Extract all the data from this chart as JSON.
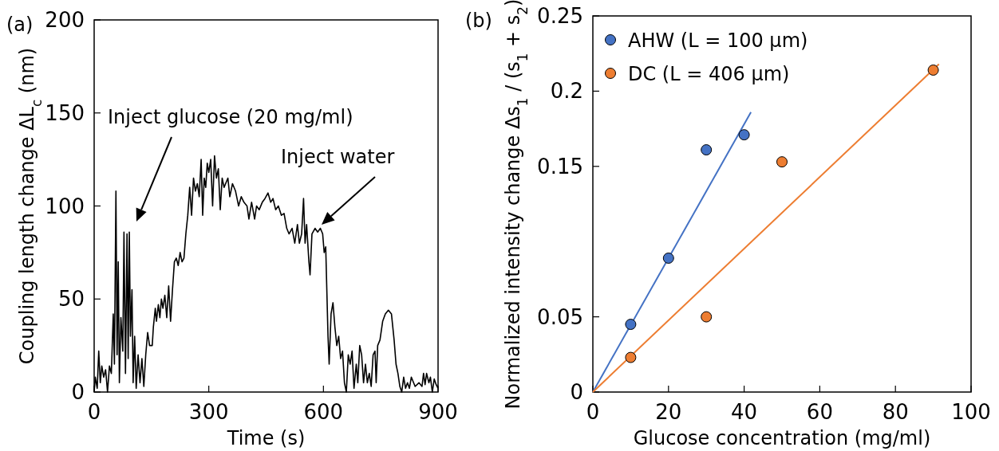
{
  "chart_data": [
    {
      "type": "line",
      "title": "(a)",
      "xlabel": "Time (s)",
      "ylabel": "Coupling length change  ΔL$_{c}$ (nm)",
      "xlim": [
        0,
        900
      ],
      "ylim": [
        0,
        200
      ],
      "xticks": [
        0,
        300,
        600,
        900
      ],
      "yticks": [
        0,
        50,
        100,
        150,
        200
      ],
      "line_style": "solid",
      "annotations": [
        "Inject glucose (20 mg/ml)",
        "Inject water"
      ],
      "series": [
        {
          "color": "#000000",
          "x": [
            0,
            3,
            8,
            12,
            16,
            20,
            25,
            30,
            35,
            40,
            45,
            50,
            53,
            57,
            60,
            63,
            66,
            70,
            75,
            78,
            82,
            86,
            89,
            92,
            95,
            99,
            102,
            106,
            110,
            115,
            120,
            125,
            130,
            135,
            140,
            145,
            152,
            155,
            160,
            163,
            168,
            172,
            176,
            180,
            185,
            190,
            195,
            200,
            205,
            210,
            215,
            220,
            225,
            230,
            235,
            240,
            245,
            250,
            255,
            260,
            265,
            270,
            275,
            280,
            284,
            288,
            292,
            296,
            300,
            305,
            310,
            315,
            320,
            325,
            330,
            335,
            340,
            350,
            355,
            362,
            370,
            378,
            385,
            392,
            400,
            405,
            412,
            420,
            425,
            432,
            440,
            447,
            455,
            462,
            468,
            475,
            482,
            490,
            497,
            504,
            510,
            518,
            525,
            532,
            537,
            543,
            548,
            552,
            556,
            562,
            565,
            570,
            578,
            585,
            592,
            598,
            602,
            606,
            612,
            615,
            620,
            625,
            630,
            635,
            640,
            645,
            650,
            655,
            660,
            665,
            670,
            675,
            680,
            686,
            690,
            695,
            700,
            705,
            710,
            715,
            720,
            725,
            730,
            735,
            738,
            742,
            748,
            755,
            762,
            770,
            778,
            785,
            790,
            795,
            800,
            805,
            810,
            815,
            820,
            825,
            830,
            840,
            850,
            858,
            862,
            866,
            870,
            876,
            880,
            885,
            890,
            895,
            900
          ],
          "values": [
            0,
            8,
            2,
            22,
            5,
            14,
            8,
            12,
            0,
            14,
            10,
            42,
            15,
            108,
            20,
            70,
            5,
            40,
            22,
            86,
            10,
            85,
            18,
            86,
            30,
            55,
            5,
            30,
            2,
            20,
            5,
            18,
            3,
            20,
            32,
            25,
            25,
            35,
            45,
            38,
            47,
            40,
            50,
            45,
            52,
            40,
            57,
            38,
            55,
            70,
            72,
            68,
            75,
            70,
            72,
            85,
            95,
            110,
            95,
            115,
            108,
            112,
            105,
            125,
            95,
            115,
            110,
            123,
            118,
            125,
            100,
            127,
            115,
            120,
            98,
            115,
            110,
            115,
            105,
            112,
            108,
            100,
            105,
            102,
            100,
            93,
            102,
            93,
            100,
            98,
            102,
            104,
            107,
            102,
            104,
            98,
            100,
            95,
            96,
            88,
            85,
            88,
            80,
            90,
            80,
            85,
            104,
            80,
            90,
            70,
            63,
            85,
            88,
            86,
            88,
            85,
            75,
            78,
            30,
            15,
            42,
            48,
            35,
            25,
            30,
            18,
            22,
            5,
            0,
            20,
            15,
            22,
            2,
            15,
            5,
            25,
            20,
            5,
            15,
            5,
            10,
            3,
            20,
            22,
            5,
            25,
            28,
            38,
            42,
            44,
            42,
            28,
            15,
            10,
            3,
            0,
            8,
            2,
            5,
            2,
            8,
            3,
            5,
            3,
            10,
            4,
            10,
            5,
            8,
            0,
            7,
            4,
            2
          ]
        }
      ]
    },
    {
      "type": "scatter",
      "title": "(b)",
      "xlabel": "Glucose concentration (mg/ml)",
      "ylabel": "Normalized intensity change Δs$_{1}$ / (s$_{1}$ + s$_{2}$)",
      "xlim": [
        0,
        100
      ],
      "ylim": [
        0,
        0.25
      ],
      "xticks": [
        0,
        20,
        40,
        60,
        80,
        100
      ],
      "yticks": [
        0,
        0.05,
        0.15,
        0.2,
        0.25
      ],
      "marker": "circle",
      "legend": "top left",
      "series": [
        {
          "name": "AHW (L = 100 µm)",
          "color": "#4472c4",
          "x": [
            10,
            20,
            30,
            40
          ],
          "values": [
            0.045,
            0.089,
            0.161,
            0.171
          ]
        },
        {
          "name": "DC (L = 406 µm)",
          "color": "#ed7d31",
          "x": [
            10,
            30,
            50,
            90
          ],
          "values": [
            0.023,
            0.05,
            0.153,
            0.214
          ]
        },
        {
          "type": "line",
          "marker": "none",
          "color": "#4472c4",
          "x": [
            0,
            41.8
          ],
          "values": [
            0,
            0.186
          ]
        },
        {
          "type": "line",
          "marker": "none",
          "color": "#ed7d31",
          "x": [
            0,
            91.5
          ],
          "values": [
            0,
            0.218
          ]
        }
      ]
    }
  ]
}
